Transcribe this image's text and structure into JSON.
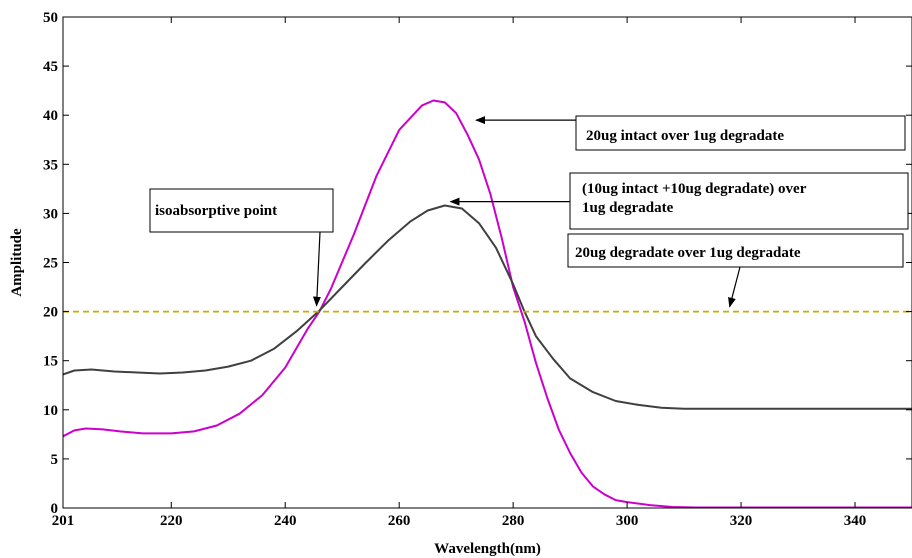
{
  "chart_data": {
    "type": "line",
    "title": "",
    "xlabel": "Wavelength(nm)",
    "ylabel": "Amplitude",
    "xlim": [
      201,
      350
    ],
    "ylim": [
      0,
      50
    ],
    "x_ticks": [
      201,
      220,
      240,
      260,
      280,
      300,
      320,
      340
    ],
    "y_ticks": [
      0,
      5,
      10,
      15,
      20,
      25,
      30,
      35,
      40,
      45,
      50
    ],
    "grid": false,
    "legend": "none",
    "series": [
      {
        "color": "#cc00cc",
        "x": [
          201,
          203,
          205,
          208,
          211,
          215,
          220,
          224,
          228,
          232,
          236,
          240,
          244,
          246,
          248,
          252,
          256,
          260,
          264,
          266,
          268,
          270,
          272,
          274,
          276,
          278,
          280,
          282,
          284,
          286,
          288,
          290,
          292,
          294,
          296,
          298,
          300,
          304,
          308,
          312,
          320,
          330,
          340,
          350
        ],
        "y": [
          7.3,
          7.9,
          8.1,
          8.0,
          7.8,
          7.6,
          7.6,
          7.8,
          8.4,
          9.6,
          11.5,
          14.3,
          18.3,
          20.0,
          22.3,
          27.8,
          33.8,
          38.5,
          41.0,
          41.5,
          41.3,
          40.2,
          38.0,
          35.5,
          32.0,
          27.5,
          22.5,
          19.0,
          14.8,
          11.2,
          8.0,
          5.6,
          3.6,
          2.2,
          1.4,
          0.8,
          0.6,
          0.3,
          0.1,
          0.05,
          0.05,
          0.05,
          0.05,
          0.05
        ]
      },
      {
        "color": "#404040",
        "x": [
          201,
          203,
          206,
          210,
          214,
          218,
          222,
          226,
          230,
          234,
          238,
          242,
          246,
          250,
          254,
          258,
          262,
          265,
          268,
          271,
          274,
          277,
          280,
          282,
          284,
          287,
          290,
          294,
          298,
          302,
          306,
          310,
          320,
          330,
          340,
          350
        ],
        "y": [
          13.6,
          14.0,
          14.1,
          13.9,
          13.8,
          13.7,
          13.8,
          14.0,
          14.4,
          15.0,
          16.2,
          18.0,
          20.1,
          22.5,
          24.9,
          27.2,
          29.2,
          30.3,
          30.8,
          30.5,
          29.0,
          26.5,
          22.8,
          20.0,
          17.5,
          15.2,
          13.2,
          11.8,
          10.9,
          10.5,
          10.2,
          10.1,
          10.1,
          10.1,
          10.1,
          10.1
        ]
      },
      {
        "color": "#ccaa00",
        "dashed": true,
        "x": [
          201,
          350
        ],
        "y": [
          20,
          20
        ]
      }
    ],
    "annotations": [
      {
        "id": "intact",
        "lines": [
          "20ug intact over 1ug degradate"
        ],
        "target": [
          273.5,
          39.5
        ]
      },
      {
        "id": "mix",
        "lines": [
          "(10ug intact +10ug degradate) over",
          "1ug degradate"
        ],
        "target": [
          269,
          31.2
        ]
      },
      {
        "id": "degradate",
        "lines": [
          "20ug degradate over 1ug degradate"
        ],
        "target": [
          318,
          20.5
        ]
      },
      {
        "id": "isoabsorptive",
        "lines": [
          "isoabsorptive point"
        ],
        "target": [
          245.5,
          20.6
        ]
      }
    ]
  }
}
